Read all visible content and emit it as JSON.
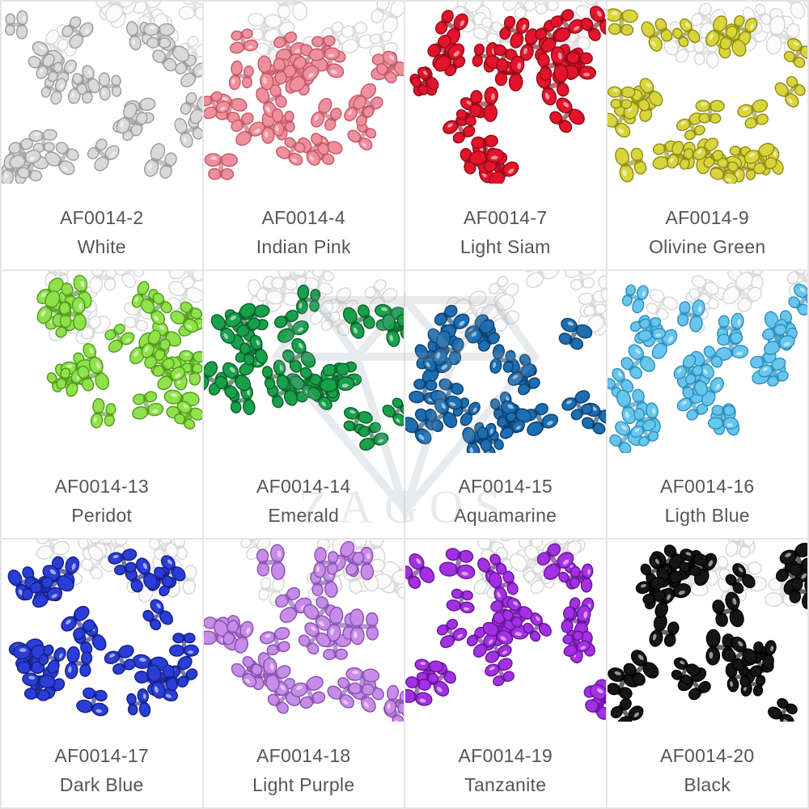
{
  "products": [
    {
      "code": "AF0014-2",
      "name": "White",
      "color": "#d9d9d9",
      "edge": "#9a9a9a"
    },
    {
      "code": "AF0014-4",
      "name": "Indian Pink",
      "color": "#ef8f9c",
      "edge": "#c25766"
    },
    {
      "code": "AF0014-7",
      "name": "Light Siam",
      "color": "#e3142b",
      "edge": "#8e0b18"
    },
    {
      "code": "AF0014-9",
      "name": "Olivine Green",
      "color": "#d8d53c",
      "edge": "#8f8a14"
    },
    {
      "code": "AF0014-13",
      "name": "Peridot",
      "color": "#8fe24a",
      "edge": "#4f9a1d"
    },
    {
      "code": "AF0014-14",
      "name": "Emerald",
      "color": "#18a04a",
      "edge": "#0b5e2a"
    },
    {
      "code": "AF0014-15",
      "name": "Aquamarine",
      "color": "#1c6db2",
      "edge": "#0d3f6b"
    },
    {
      "code": "AF0014-16",
      "name": "Ligth Blue",
      "color": "#67c6ee",
      "edge": "#2d8dba"
    },
    {
      "code": "AF0014-17",
      "name": "Dark Blue",
      "color": "#2a3dd6",
      "edge": "#141f85"
    },
    {
      "code": "AF0014-18",
      "name": "Light Purple",
      "color": "#c78be8",
      "edge": "#8550b0"
    },
    {
      "code": "AF0014-19",
      "name": "Tanzanite",
      "color": "#a430e4",
      "edge": "#621596"
    },
    {
      "code": "AF0014-20",
      "name": "Black",
      "color": "#151515",
      "edge": "#000000"
    }
  ],
  "watermark": {
    "text": "ZAGOS",
    "color": "#9aa6b6"
  }
}
